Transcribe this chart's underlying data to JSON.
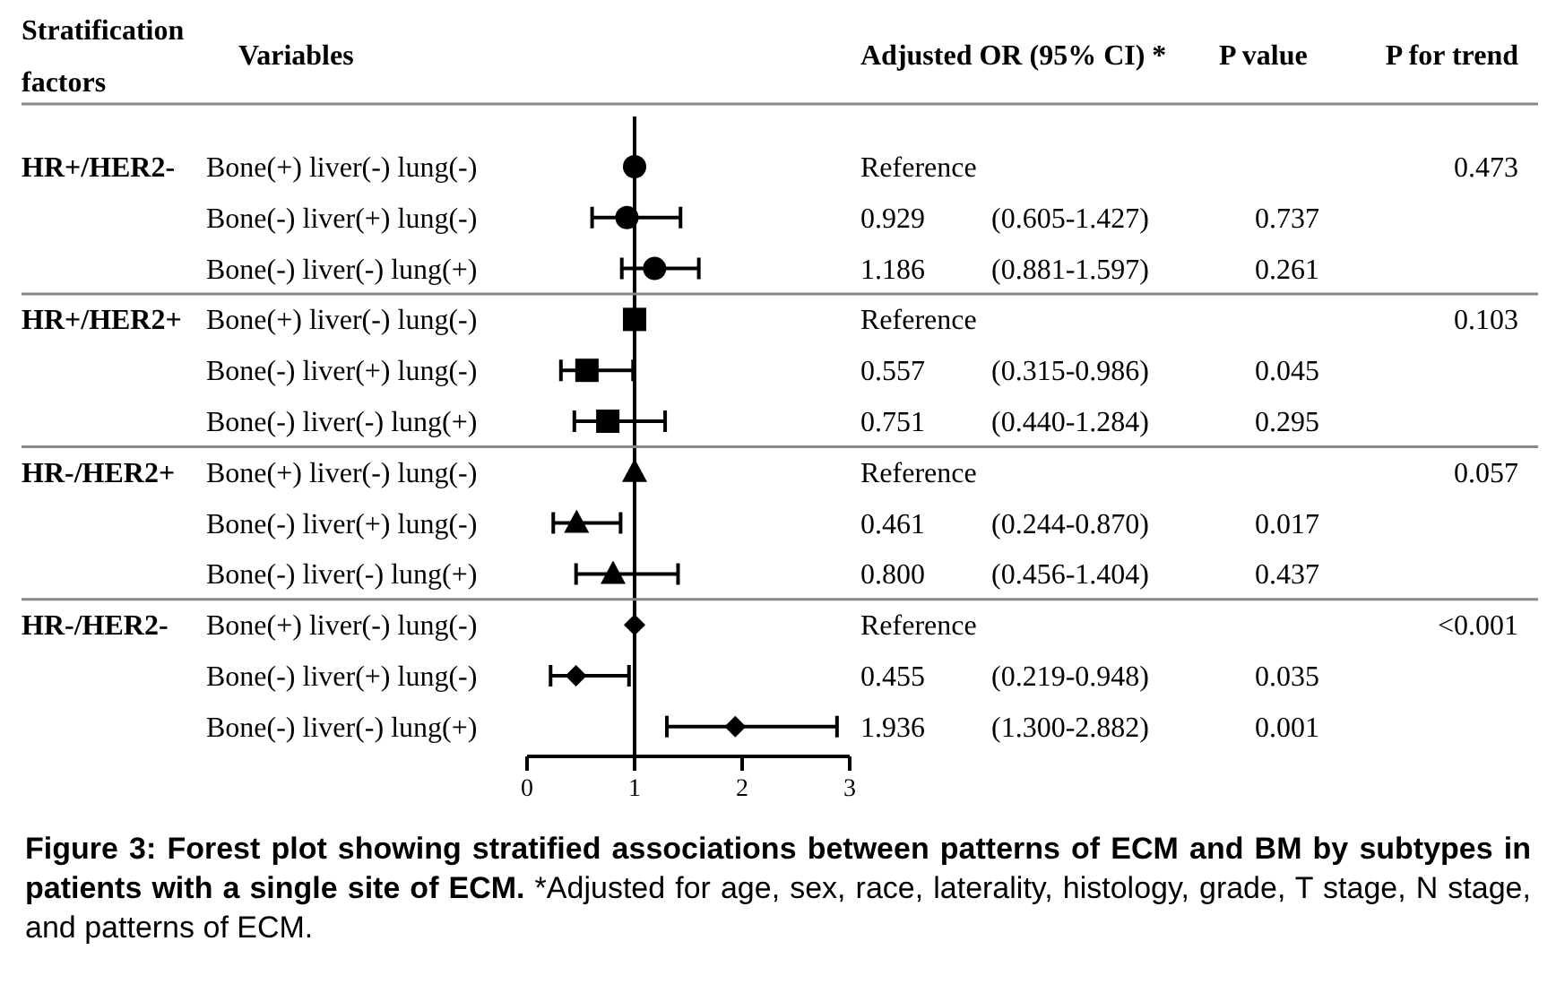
{
  "chart_data": {
    "type": "scatter",
    "orientation": "horizontal",
    "categories": [
      "Bone(+) liver(-) lung(-)",
      "Bone(-) liver(+) lung(-)",
      "Bone(-) liver(-) lung(+)",
      "Bone(+) liver(-) lung(-)",
      "Bone(-) liver(+) lung(-)",
      "Bone(-) liver(-) lung(+)",
      "Bone(+) liver(-) lung(-)",
      "Bone(-) liver(+) lung(-)",
      "Bone(-) liver(-) lung(+)",
      "Bone(+) liver(-) lung(-)",
      "Bone(-) liver(+) lung(-)",
      "Bone(-) liver(-) lung(+)"
    ],
    "series": [
      {
        "color": "#000000",
        "marker": "circle",
        "values": [
          1,
          0.929,
          1.186,
          null,
          null,
          null,
          null,
          null,
          null,
          null,
          null,
          null
        ],
        "errors": [
          null,
          [
            0.605,
            1.427
          ],
          [
            0.881,
            1.597
          ],
          null,
          null,
          null,
          null,
          null,
          null,
          null,
          null,
          null
        ]
      },
      {
        "color": "#000000",
        "marker": "square",
        "values": [
          null,
          null,
          null,
          1,
          0.557,
          0.751,
          null,
          null,
          null,
          null,
          null,
          null
        ],
        "errors": [
          null,
          null,
          null,
          null,
          [
            0.315,
            0.986
          ],
          [
            0.44,
            1.284
          ],
          null,
          null,
          null,
          null,
          null,
          null
        ]
      },
      {
        "color": "#000000",
        "marker": "triangle",
        "values": [
          null,
          null,
          null,
          null,
          null,
          null,
          1,
          0.461,
          0.8,
          null,
          null,
          null
        ],
        "errors": [
          null,
          null,
          null,
          null,
          null,
          null,
          null,
          [
            0.244,
            0.87
          ],
          [
            0.456,
            1.404
          ],
          null,
          null,
          null
        ]
      },
      {
        "color": "#000000",
        "marker": "diamond",
        "values": [
          null,
          null,
          null,
          null,
          null,
          null,
          null,
          null,
          null,
          1,
          0.455,
          1.936
        ],
        "errors": [
          null,
          null,
          null,
          null,
          null,
          null,
          null,
          null,
          null,
          null,
          [
            0.219,
            0.948
          ],
          [
            1.3,
            2.882
          ]
        ]
      }
    ],
    "xlim": [
      0,
      3
    ],
    "xticks": [
      0,
      1,
      2,
      3
    ],
    "ref_lines": [
      {
        "axis": "x",
        "value": 1
      }
    ],
    "annotations": [
      "Stratification factors",
      "Variables",
      "Adjusted OR (95% CI) *",
      "P value",
      "P for trend",
      "HR+/HER2-",
      "HR+/HER2+",
      "HR-/HER2+",
      "HR-/HER2-",
      "0.473",
      "0.103",
      "0.057",
      "<0.001",
      "Reference",
      "0.929",
      "1.186",
      "Reference",
      "0.557",
      "0.751",
      "Reference",
      "0.461",
      "0.800",
      "Reference",
      "0.455",
      "1.936",
      "(0.605-1.427)",
      "(0.881-1.597)",
      "(0.315-0.986)",
      "(0.440-1.284)",
      "(0.244-0.870)",
      "(0.456-1.404)",
      "(0.219-0.948)",
      "(1.300-2.882)",
      "0.737",
      "0.261",
      "0.045",
      "0.295",
      "0.017",
      "0.437",
      "0.035",
      "0.001",
      "Figure 3: Forest plot showing stratified associations between patterns of ECM and BM by subtypes in patients with a single site of ECM.",
      "*Adjusted for age, sex, race, laterality, histology, grade, T stage, N stage, and patterns of ECM."
    ]
  }
}
